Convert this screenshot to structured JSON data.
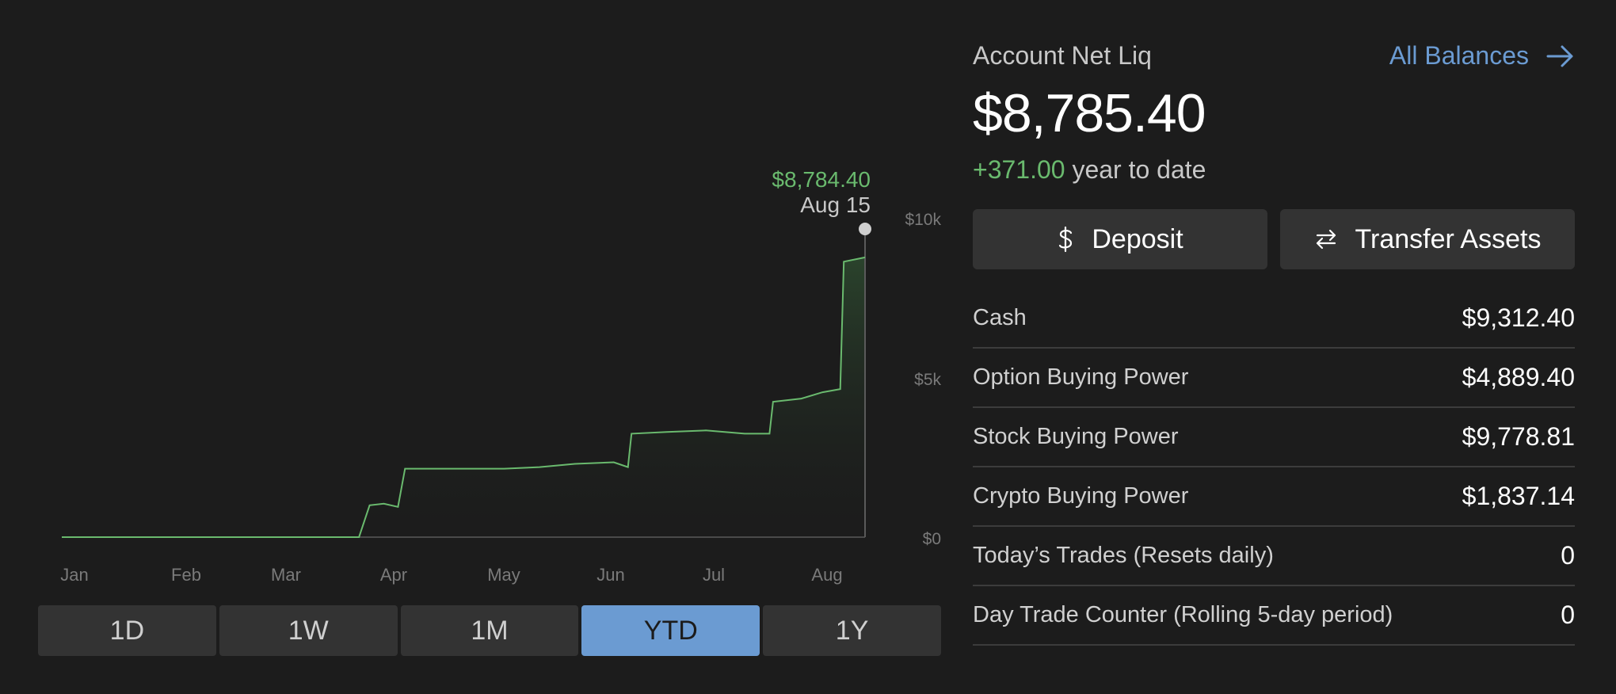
{
  "chart_data": {
    "type": "area",
    "x_tick_labels": [
      "Jan",
      "Feb",
      "Mar",
      "Apr",
      "May",
      "Jun",
      "Jul",
      "Aug"
    ],
    "y_tick_labels": [
      "$10k",
      "$5k",
      "$0"
    ],
    "ylim": [
      0,
      10000
    ],
    "tooltip": {
      "value": "$8,784.40",
      "date": "Aug 15"
    },
    "points": [
      [
        "2024-01-01",
        0
      ],
      [
        "2024-03-25",
        0
      ],
      [
        "2024-03-28",
        1000
      ],
      [
        "2024-04-01",
        1050
      ],
      [
        "2024-04-05",
        950
      ],
      [
        "2024-04-07",
        2150
      ],
      [
        "2024-04-20",
        2150
      ],
      [
        "2024-05-05",
        2150
      ],
      [
        "2024-05-15",
        2200
      ],
      [
        "2024-05-25",
        2300
      ],
      [
        "2024-06-05",
        2350
      ],
      [
        "2024-06-09",
        2200
      ],
      [
        "2024-06-10",
        3250
      ],
      [
        "2024-06-20",
        3300
      ],
      [
        "2024-07-01",
        3350
      ],
      [
        "2024-07-12",
        3250
      ],
      [
        "2024-07-19",
        3250
      ],
      [
        "2024-07-20",
        4250
      ],
      [
        "2024-07-28",
        4350
      ],
      [
        "2024-08-03",
        4550
      ],
      [
        "2024-08-08",
        4650
      ],
      [
        "2024-08-09",
        8650
      ],
      [
        "2024-08-15",
        8784.4
      ]
    ],
    "line_color": "#6aba6e"
  },
  "ranges": [
    "1D",
    "1W",
    "1M",
    "YTD",
    "1Y"
  ],
  "active_range": "YTD",
  "account": {
    "label": "Account Net Liq",
    "all_balances": "All Balances",
    "value": "$8,785.40",
    "change": "+371.00",
    "change_suffix": "year to date"
  },
  "actions": {
    "deposit": "Deposit",
    "transfer": "Transfer Assets"
  },
  "balances": [
    {
      "label": "Cash",
      "value": "$9,312.40"
    },
    {
      "label": "Option Buying Power",
      "value": "$4,889.40"
    },
    {
      "label": "Stock Buying Power",
      "value": "$9,778.81"
    },
    {
      "label": "Crypto Buying Power",
      "value": "$1,837.14"
    },
    {
      "label": "Today’s Trades (Resets daily)",
      "value": "0"
    },
    {
      "label": "Day Trade Counter (Rolling 5-day period)",
      "value": "0"
    }
  ],
  "icons": {
    "arrow": "arrow-right-icon",
    "deposit": "dollar-icon",
    "transfer": "transfer-arrows-icon"
  }
}
